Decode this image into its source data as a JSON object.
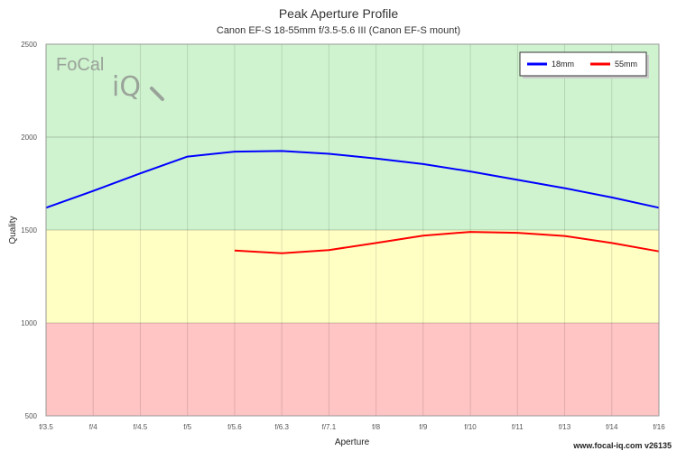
{
  "chart_data": {
    "type": "line",
    "title": "Peak Aperture Profile",
    "subtitle": "Canon EF-S 18-55mm f/3.5-5.6 III (Canon EF-S mount)",
    "xlabel": "Aperture",
    "ylabel": "Quality",
    "categories": [
      "f/3.5",
      "f/4",
      "f/4.5",
      "f/5",
      "f/5.6",
      "f/6.3",
      "f/7.1",
      "f/8",
      "f/9",
      "f/10",
      "f/11",
      "f/13",
      "f/14",
      "f/16"
    ],
    "ylim": [
      500,
      2500
    ],
    "yticks": [
      500,
      1000,
      1500,
      2000,
      2500
    ],
    "bands": [
      {
        "from": 500,
        "to": 1000,
        "color": "#ffc4c4"
      },
      {
        "from": 1000,
        "to": 1500,
        "color": "#ffffc4"
      },
      {
        "from": 1500,
        "to": 2500,
        "color": "#cff3cf"
      }
    ],
    "grid": true,
    "legend_position": "top-right",
    "series": [
      {
        "name": "18mm",
        "color": "#0000ff",
        "values": [
          1620,
          1710,
          1805,
          1895,
          1922,
          1925,
          1910,
          1885,
          1855,
          1815,
          1770,
          1725,
          1675,
          1620
        ]
      },
      {
        "name": "55mm",
        "color": "#ff0000",
        "values": [
          null,
          null,
          null,
          null,
          1390,
          1375,
          1392,
          1430,
          1470,
          1490,
          1485,
          1468,
          1430,
          1385
        ]
      }
    ]
  },
  "logo": {
    "text_left": "Fo",
    "text_c": "C",
    "text_right": "al",
    "text_iq": "iQ"
  },
  "footer": "www.focal-iq.com v26135"
}
